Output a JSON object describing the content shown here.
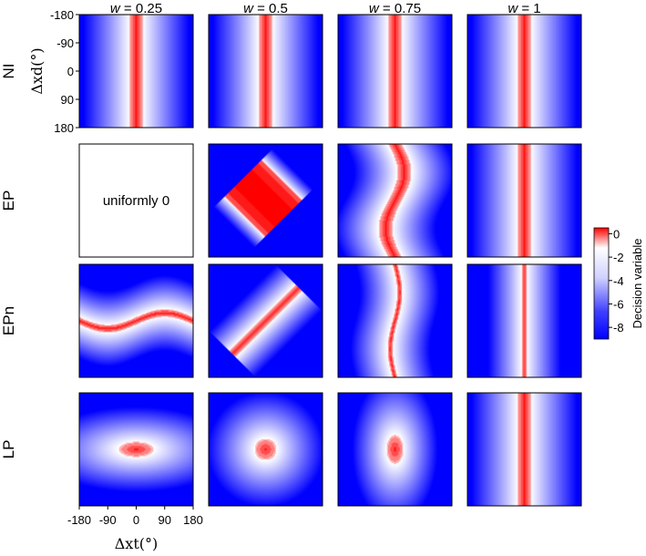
{
  "chart_data": {
    "type": "heatmap",
    "layout": "grid 4 rows x 4 columns",
    "columns": [
      "w = 0.25",
      "w = 0.5",
      "w = 0.75",
      "w = 1"
    ],
    "column_prefix": "w",
    "column_values": [
      "0.25",
      "0.5",
      "0.75",
      "1"
    ],
    "rows": [
      "NI",
      "EP",
      "EPn",
      "LP"
    ],
    "xlabel": "Δxt(°)",
    "ylabel": "Δxd(°)",
    "x_ticks": [
      "-180",
      "-90",
      "0",
      "90",
      "180"
    ],
    "y_ticks": [
      "-180",
      "-90",
      "0",
      "90",
      "180"
    ],
    "xlim": [
      -180,
      180
    ],
    "ylim": [
      -180,
      180
    ],
    "colorbar": {
      "label": "Decision variable",
      "ticks": [
        "0",
        "-2",
        "-4",
        "-6",
        "-8"
      ],
      "tick_values": [
        0,
        -2,
        -4,
        -6,
        -8
      ],
      "range": [
        -9,
        0.5
      ],
      "colors": {
        "high": "#ff0000",
        "mid": "#ffffff",
        "low": "#0000ff"
      }
    },
    "panels": [
      {
        "row": "NI",
        "w": 0.25,
        "pattern": "vertical band centered at Δxt = 0",
        "band_halfwidth_deg": 20
      },
      {
        "row": "NI",
        "w": 0.5,
        "pattern": "vertical band centered at Δxt = 0",
        "band_halfwidth_deg": 20
      },
      {
        "row": "NI",
        "w": 0.75,
        "pattern": "vertical band centered at Δxt = 0",
        "band_halfwidth_deg": 20
      },
      {
        "row": "NI",
        "w": 1,
        "pattern": "vertical band centered at Δxt = 0",
        "band_halfwidth_deg": 20
      },
      {
        "row": "EP",
        "w": 0.25,
        "pattern": "constant",
        "value": 0,
        "annotation": "uniformly 0"
      },
      {
        "row": "EP",
        "w": 0.5,
        "pattern": "rotated square centered at origin"
      },
      {
        "row": "EP",
        "w": 0.75,
        "pattern": "wavy vertical band"
      },
      {
        "row": "EP",
        "w": 1,
        "pattern": "vertical band centered at Δxt = 0",
        "band_halfwidth_deg": 20
      },
      {
        "row": "EPn",
        "w": 0.25,
        "pattern": "horizontal sinusoidal band"
      },
      {
        "row": "EPn",
        "w": 0.5,
        "pattern": "diagonal band along Δxd = -Δxt"
      },
      {
        "row": "EPn",
        "w": 0.75,
        "pattern": "thin wavy vertical band"
      },
      {
        "row": "EPn",
        "w": 1,
        "pattern": "thin vertical band centered at Δxt = 0",
        "band_halfwidth_deg": 7
      },
      {
        "row": "LP",
        "w": 0.25,
        "pattern": "elliptical blob, wide in Δxt"
      },
      {
        "row": "LP",
        "w": 0.5,
        "pattern": "circular blob at origin"
      },
      {
        "row": "LP",
        "w": 0.75,
        "pattern": "elliptical blob, tall in Δxd"
      },
      {
        "row": "LP",
        "w": 1,
        "pattern": "vertical band centered at Δxt = 0",
        "band_halfwidth_deg": 20
      }
    ],
    "annotations": [
      "uniformly 0"
    ]
  }
}
